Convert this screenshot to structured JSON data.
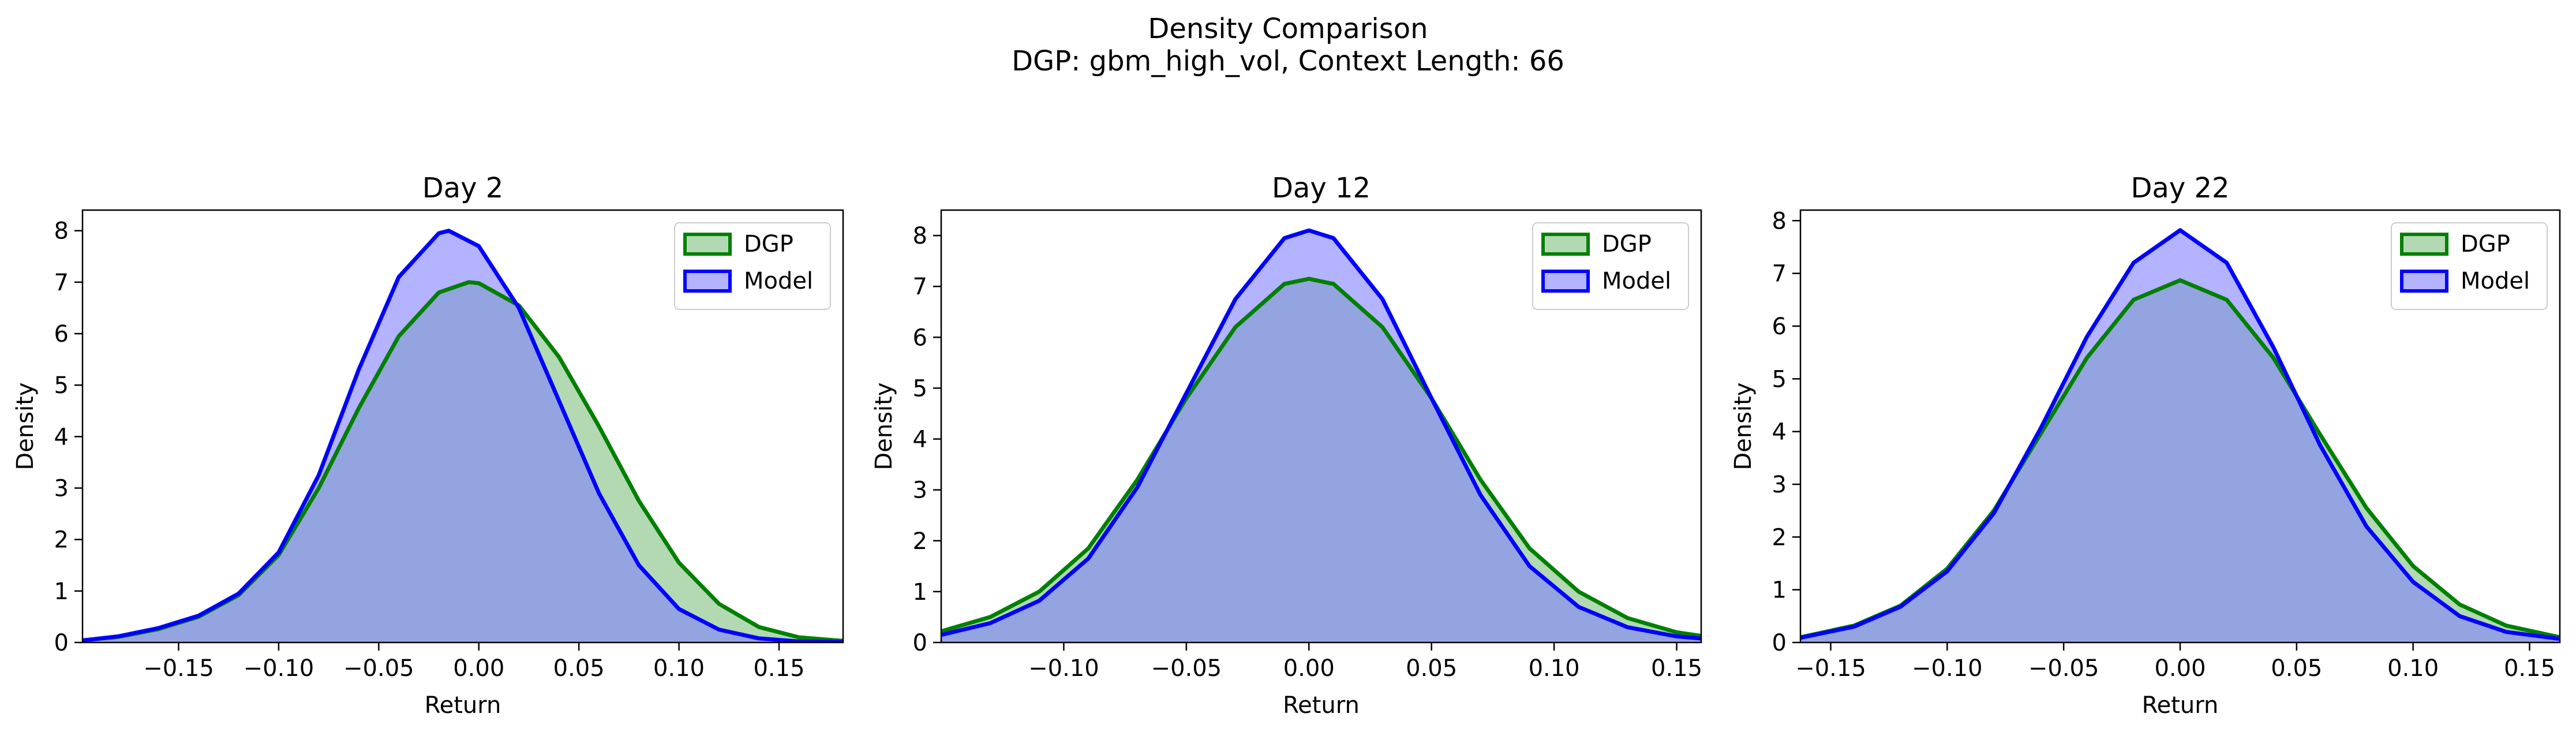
{
  "figure": {
    "title_line1": "Density Comparison",
    "title_line2": "DGP: gbm_high_vol, Context Length: 66"
  },
  "colors": {
    "dgp_line": "#008000",
    "dgp_fill": "#7fbf7f",
    "model_line": "#0000ff",
    "model_fill": "#8080ff",
    "overlap_fill": "#7b98c8"
  },
  "chart_data": [
    {
      "type": "area",
      "title": "Day 2",
      "xlabel": "Return",
      "ylabel": "Density",
      "xlim": [
        -0.198,
        0.182
      ],
      "ylim": [
        0,
        8.4
      ],
      "xticks": [
        -0.15,
        -0.1,
        -0.05,
        0.0,
        0.05,
        0.1,
        0.15
      ],
      "xtick_labels": [
        "−0.15",
        "−0.10",
        "−0.05",
        "0.00",
        "0.05",
        "0.10",
        "0.15"
      ],
      "yticks": [
        0,
        1,
        2,
        3,
        4,
        5,
        6,
        7,
        8
      ],
      "ytick_labels": [
        "0",
        "1",
        "2",
        "3",
        "4",
        "5",
        "6",
        "7",
        "8"
      ],
      "legend": "top-right",
      "grid": false,
      "series": [
        {
          "name": "DGP",
          "x": [
            -0.198,
            -0.18,
            -0.16,
            -0.14,
            -0.12,
            -0.1,
            -0.08,
            -0.06,
            -0.04,
            -0.02,
            -0.005,
            0.0,
            0.02,
            0.04,
            0.06,
            0.08,
            0.1,
            0.12,
            0.14,
            0.16,
            0.182
          ],
          "y": [
            0.04,
            0.11,
            0.26,
            0.5,
            0.92,
            1.7,
            3.0,
            4.55,
            5.95,
            6.8,
            7.0,
            6.98,
            6.55,
            5.55,
            4.2,
            2.75,
            1.55,
            0.75,
            0.3,
            0.1,
            0.03
          ]
        },
        {
          "name": "Model",
          "x": [
            -0.198,
            -0.18,
            -0.16,
            -0.14,
            -0.12,
            -0.1,
            -0.08,
            -0.06,
            -0.04,
            -0.02,
            -0.015,
            0.0,
            0.02,
            0.04,
            0.06,
            0.08,
            0.1,
            0.12,
            0.14,
            0.16,
            0.182
          ],
          "y": [
            0.04,
            0.12,
            0.28,
            0.52,
            0.95,
            1.75,
            3.25,
            5.3,
            7.1,
            7.95,
            8.0,
            7.7,
            6.5,
            4.7,
            2.9,
            1.5,
            0.65,
            0.25,
            0.08,
            0.02,
            0.01
          ]
        }
      ]
    },
    {
      "type": "area",
      "title": "Day 12",
      "xlabel": "Return",
      "ylabel": "Density",
      "xlim": [
        -0.15,
        0.16
      ],
      "ylim": [
        0,
        8.5
      ],
      "xticks": [
        -0.1,
        -0.05,
        0.0,
        0.05,
        0.1,
        0.15
      ],
      "xtick_labels": [
        "−0.10",
        "−0.05",
        "0.00",
        "0.05",
        "0.10",
        "0.15"
      ],
      "yticks": [
        0,
        1,
        2,
        3,
        4,
        5,
        6,
        7,
        8
      ],
      "ytick_labels": [
        "0",
        "1",
        "2",
        "3",
        "4",
        "5",
        "6",
        "7",
        "8"
      ],
      "legend": "top-right",
      "grid": false,
      "series": [
        {
          "name": "DGP",
          "x": [
            -0.15,
            -0.13,
            -0.11,
            -0.09,
            -0.07,
            -0.05,
            -0.03,
            -0.01,
            0.0,
            0.01,
            0.03,
            0.05,
            0.07,
            0.09,
            0.11,
            0.13,
            0.15,
            0.16
          ],
          "y": [
            0.22,
            0.5,
            1.0,
            1.85,
            3.2,
            4.8,
            6.2,
            7.05,
            7.15,
            7.05,
            6.2,
            4.8,
            3.2,
            1.85,
            1.0,
            0.48,
            0.2,
            0.13
          ]
        },
        {
          "name": "Model",
          "x": [
            -0.15,
            -0.13,
            -0.11,
            -0.09,
            -0.07,
            -0.05,
            -0.03,
            -0.01,
            0.0,
            0.01,
            0.03,
            0.05,
            0.07,
            0.09,
            0.11,
            0.13,
            0.15,
            0.16
          ],
          "y": [
            0.15,
            0.38,
            0.82,
            1.65,
            3.05,
            4.9,
            6.75,
            7.95,
            8.1,
            7.95,
            6.75,
            4.8,
            2.9,
            1.5,
            0.7,
            0.3,
            0.12,
            0.08
          ]
        }
      ]
    },
    {
      "type": "area",
      "title": "Day 22",
      "xlabel": "Return",
      "ylabel": "Density",
      "xlim": [
        -0.163,
        0.163
      ],
      "ylim": [
        0,
        8.2
      ],
      "xticks": [
        -0.15,
        -0.1,
        -0.05,
        0.0,
        0.05,
        0.1,
        0.15
      ],
      "xtick_labels": [
        "−0.15",
        "−0.10",
        "−0.05",
        "0.00",
        "0.05",
        "0.10",
        "0.15"
      ],
      "yticks": [
        0,
        1,
        2,
        3,
        4,
        5,
        6,
        7,
        8
      ],
      "ytick_labels": [
        "0",
        "1",
        "2",
        "3",
        "4",
        "5",
        "6",
        "7",
        "8"
      ],
      "legend": "top-right",
      "grid": false,
      "series": [
        {
          "name": "DGP",
          "x": [
            -0.163,
            -0.14,
            -0.12,
            -0.1,
            -0.08,
            -0.06,
            -0.04,
            -0.02,
            0.0,
            0.02,
            0.04,
            0.06,
            0.08,
            0.1,
            0.12,
            0.14,
            0.163
          ],
          "y": [
            0.1,
            0.32,
            0.7,
            1.4,
            2.5,
            3.95,
            5.4,
            6.5,
            6.87,
            6.5,
            5.4,
            3.95,
            2.55,
            1.45,
            0.72,
            0.32,
            0.1
          ]
        },
        {
          "name": "Model",
          "x": [
            -0.163,
            -0.14,
            -0.12,
            -0.1,
            -0.08,
            -0.06,
            -0.04,
            -0.02,
            0.0,
            0.02,
            0.04,
            0.06,
            0.08,
            0.1,
            0.12,
            0.14,
            0.163
          ],
          "y": [
            0.09,
            0.3,
            0.68,
            1.35,
            2.45,
            4.05,
            5.8,
            7.2,
            7.82,
            7.2,
            5.6,
            3.75,
            2.2,
            1.15,
            0.5,
            0.2,
            0.07
          ]
        }
      ]
    }
  ]
}
